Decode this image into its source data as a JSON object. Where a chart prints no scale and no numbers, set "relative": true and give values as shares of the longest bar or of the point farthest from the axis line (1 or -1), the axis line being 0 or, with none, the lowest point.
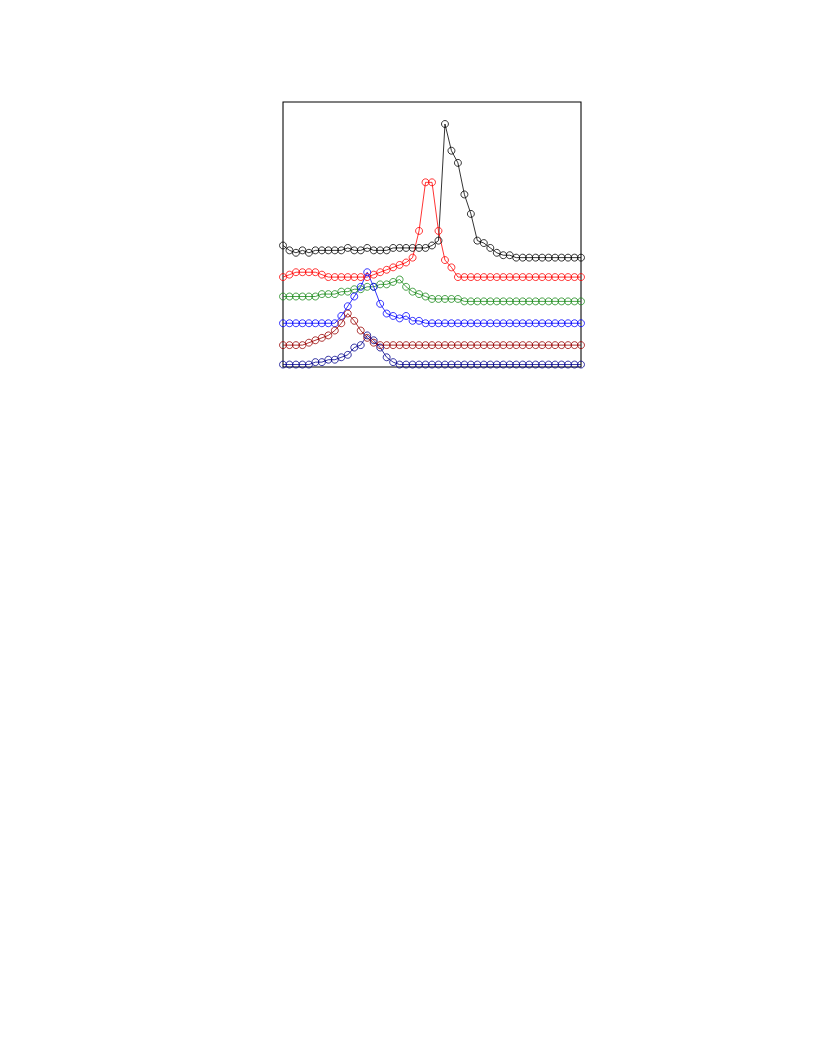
{
  "chart_data": {
    "type": "line",
    "relative": true,
    "marker": "circle",
    "line_style": "solid",
    "categories": [
      null,
      null,
      null,
      null,
      null,
      null,
      null,
      null,
      null,
      null,
      null,
      null,
      null,
      null,
      null,
      null,
      null,
      null,
      null,
      null,
      null,
      null,
      null,
      null,
      null,
      null,
      null,
      null,
      null,
      null,
      null,
      null,
      null,
      null,
      null,
      null,
      null,
      null,
      null,
      null,
      null,
      null,
      null,
      null,
      null,
      null,
      null
    ],
    "series": [
      {
        "color": "#000000",
        "values": [
          0.5,
          0.48,
          0.47,
          0.48,
          0.47,
          0.48,
          0.48,
          0.48,
          0.48,
          0.48,
          0.49,
          0.48,
          0.48,
          0.49,
          0.48,
          0.48,
          0.48,
          0.49,
          0.49,
          0.49,
          0.49,
          0.49,
          0.49,
          0.5,
          0.52,
          1.0,
          0.89,
          0.84,
          0.71,
          0.63,
          0.52,
          0.51,
          0.49,
          0.47,
          0.46,
          0.46,
          0.45,
          0.45,
          0.45,
          0.45,
          0.45,
          0.45,
          0.45,
          0.45,
          0.45,
          0.45,
          0.45
        ]
      },
      {
        "color": "#ff0000",
        "values": [
          0.37,
          0.38,
          0.39,
          0.39,
          0.39,
          0.39,
          0.38,
          0.37,
          0.37,
          0.37,
          0.37,
          0.37,
          0.37,
          0.37,
          0.38,
          0.39,
          0.4,
          0.41,
          0.42,
          0.43,
          0.45,
          0.56,
          0.76,
          0.76,
          0.56,
          0.44,
          0.41,
          0.37,
          0.37,
          0.37,
          0.37,
          0.37,
          0.37,
          0.37,
          0.37,
          0.37,
          0.37,
          0.37,
          0.37,
          0.37,
          0.37,
          0.37,
          0.37,
          0.37,
          0.37,
          0.37,
          0.37
        ]
      },
      {
        "color": "#1a8a1a",
        "values": [
          0.29,
          0.29,
          0.29,
          0.29,
          0.29,
          0.29,
          0.3,
          0.3,
          0.3,
          0.31,
          0.31,
          0.32,
          0.32,
          0.33,
          0.33,
          0.34,
          0.34,
          0.35,
          0.36,
          0.33,
          0.31,
          0.3,
          0.29,
          0.28,
          0.28,
          0.28,
          0.28,
          0.28,
          0.27,
          0.27,
          0.27,
          0.27,
          0.27,
          0.27,
          0.27,
          0.27,
          0.27,
          0.27,
          0.27,
          0.27,
          0.27,
          0.27,
          0.27,
          0.27,
          0.27,
          0.27,
          0.27
        ]
      },
      {
        "color": "#0000ff",
        "values": [
          0.18,
          0.18,
          0.18,
          0.18,
          0.18,
          0.18,
          0.18,
          0.18,
          0.18,
          0.21,
          0.25,
          0.29,
          0.33,
          0.39,
          0.33,
          0.26,
          0.22,
          0.21,
          0.2,
          0.21,
          0.19,
          0.19,
          0.18,
          0.18,
          0.18,
          0.18,
          0.18,
          0.18,
          0.18,
          0.18,
          0.18,
          0.18,
          0.18,
          0.18,
          0.18,
          0.18,
          0.18,
          0.18,
          0.18,
          0.18,
          0.18,
          0.18,
          0.18,
          0.18,
          0.18,
          0.18,
          0.18
        ]
      },
      {
        "color": "#990000",
        "values": [
          0.09,
          0.09,
          0.09,
          0.09,
          0.1,
          0.11,
          0.12,
          0.13,
          0.15,
          0.18,
          0.22,
          0.19,
          0.15,
          0.12,
          0.1,
          0.09,
          0.09,
          0.09,
          0.09,
          0.09,
          0.09,
          0.09,
          0.09,
          0.09,
          0.09,
          0.09,
          0.09,
          0.09,
          0.09,
          0.09,
          0.09,
          0.09,
          0.09,
          0.09,
          0.09,
          0.09,
          0.09,
          0.09,
          0.09,
          0.09,
          0.09,
          0.09,
          0.09,
          0.09,
          0.09,
          0.09,
          0.09
        ]
      },
      {
        "color": "#00008b",
        "values": [
          0.01,
          0.01,
          0.01,
          0.01,
          0.01,
          0.02,
          0.02,
          0.03,
          0.03,
          0.04,
          0.05,
          0.08,
          0.09,
          0.13,
          0.11,
          0.08,
          0.04,
          0.02,
          0.01,
          0.01,
          0.01,
          0.01,
          0.01,
          0.01,
          0.01,
          0.01,
          0.01,
          0.01,
          0.01,
          0.01,
          0.01,
          0.01,
          0.01,
          0.01,
          0.01,
          0.01,
          0.01,
          0.01,
          0.01,
          0.01,
          0.01,
          0.01,
          0.01,
          0.01,
          0.01,
          0.01,
          0.01
        ]
      }
    ]
  }
}
